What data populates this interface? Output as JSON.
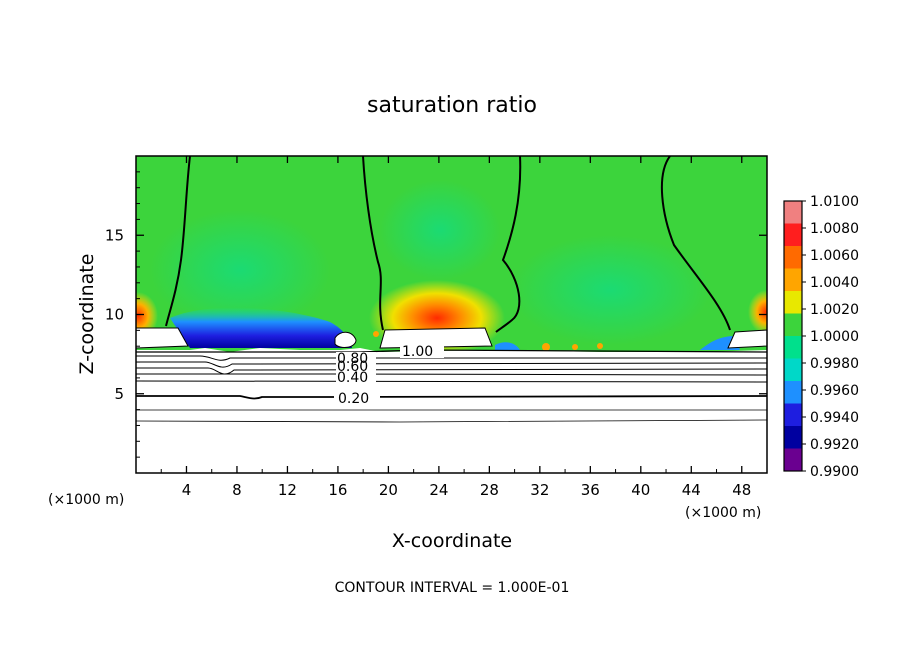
{
  "chart_data": {
    "type": "heatmap",
    "title": "saturation ratio",
    "xlabel": "X-coordinate",
    "ylabel": "Z-coordinate",
    "x_unit_left": "(×1000 m)",
    "x_unit_right": "(×1000 m)",
    "xlim": [
      0,
      50
    ],
    "ylim": [
      0,
      20
    ],
    "x_ticks": [
      "4",
      "8",
      "12",
      "16",
      "20",
      "24",
      "28",
      "32",
      "36",
      "40",
      "44",
      "48"
    ],
    "y_ticks": [
      "5",
      "10",
      "15"
    ],
    "footer": "CONTOUR INTERVAL = 1.000E-01",
    "colorbar": {
      "labels": [
        "1.0100",
        "1.0080",
        "1.0060",
        "1.0040",
        "1.0020",
        "1.0000",
        "0.9980",
        "0.9960",
        "0.9940",
        "0.9920",
        "0.9900"
      ],
      "colors": [
        "#f08080",
        "#ff1e1e",
        "#ff6a00",
        "#ffa500",
        "#e8e800",
        "#3cd43c",
        "#00e08c",
        "#00d8c8",
        "#1e90ff",
        "#1e1ee0",
        "#0000a0",
        "#6a0090"
      ]
    },
    "contour_labels": [
      "1.00",
      "0.80",
      "0.60",
      "0.40",
      "0.20"
    ]
  }
}
